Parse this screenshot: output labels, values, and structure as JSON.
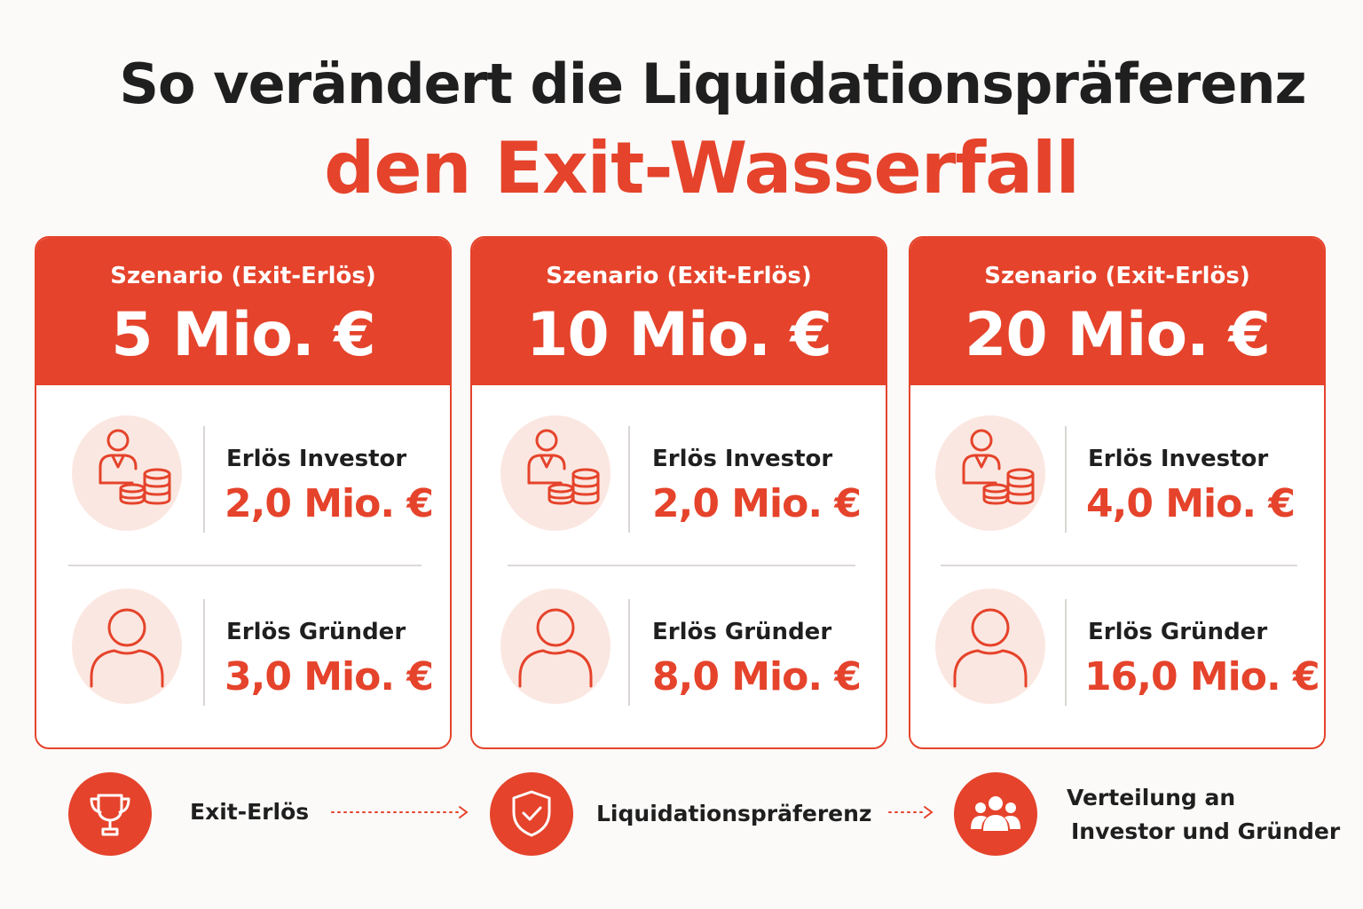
{
  "title": {
    "line1": "So verändert die Liquidationspräferenz",
    "line2": "den Exit-Wasserfall"
  },
  "colors": {
    "accent": "#e5432b",
    "avatar_bg": "#fbe7e1",
    "text": "#1f1f1f"
  },
  "scenarios": [
    {
      "label": "Szenario (Exit-Erlös)",
      "amount": "5 Mio. €",
      "investor": {
        "label": "Erlös Investor",
        "value": "2,0 Mio. €",
        "icon": "investor-coins-icon"
      },
      "founder": {
        "label": "Erlös Gründer",
        "value": "3,0 Mio. €",
        "icon": "person-icon"
      }
    },
    {
      "label": "Szenario (Exit-Erlös)",
      "amount": "10 Mio. €",
      "investor": {
        "label": "Erlös Investor",
        "value": "2,0 Mio. €",
        "icon": "investor-coins-icon"
      },
      "founder": {
        "label": "Erlös Gründer",
        "value": "8,0 Mio. €",
        "icon": "person-icon"
      }
    },
    {
      "label": "Szenario (Exit-Erlös)",
      "amount": "20 Mio. €",
      "investor": {
        "label": "Erlös Investor",
        "value": "4,0 Mio. €",
        "icon": "investor-coins-icon"
      },
      "founder": {
        "label": "Erlös Gründer",
        "value": "16,0 Mio. €",
        "icon": "person-icon"
      }
    }
  ],
  "flow": [
    {
      "label": "Exit-Erlös",
      "icon": "trophy-icon"
    },
    {
      "label": "Liquidationspräferenz",
      "icon": "shield-check-icon"
    },
    {
      "label_line1": "Verteilung an",
      "label_line2": "Investor und Gründer",
      "icon": "group-icon"
    }
  ]
}
